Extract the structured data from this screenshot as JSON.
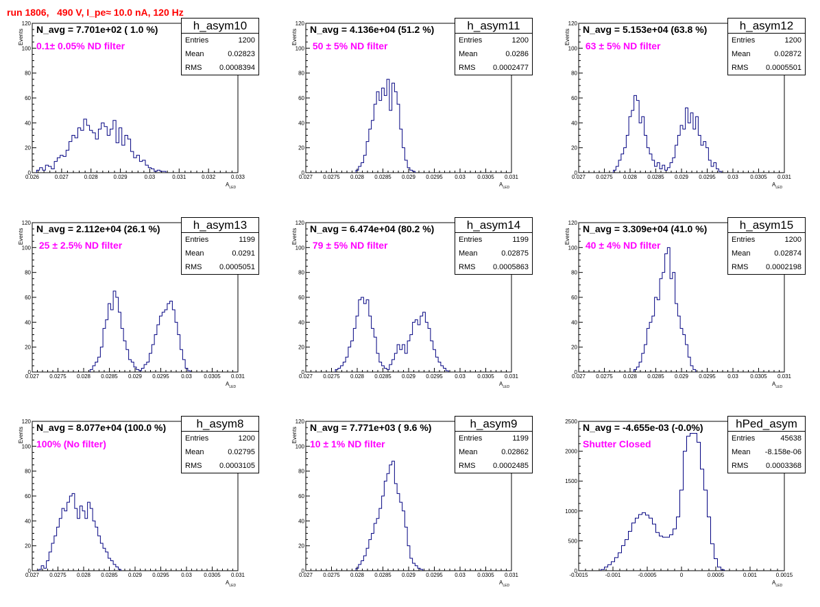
{
  "page": {
    "title": "run 1806,   490 V, I_pe≈ 10.0 nA, 120 Hz"
  },
  "chart_data": [
    {
      "type": "histogram",
      "name": "h_asym10",
      "navg": "N_avg = 7.701e+02 ( 1.0 %)",
      "label": "0.1± 0.05% ND filter",
      "entries": "1200",
      "mean": "0.02823",
      "rms": "0.0008394",
      "xlim": [
        0.026,
        0.033
      ],
      "ylim": [
        0,
        120
      ],
      "xticks": [
        "0.026",
        "0.027",
        "0.028",
        "0.029",
        "0.03",
        "0.031",
        "0.032",
        "0.033"
      ],
      "yticks": [
        "0",
        "20",
        "40",
        "60",
        "80",
        "100",
        "120"
      ],
      "xlabel": "A",
      "xlabel_sub": "LED",
      "ylabel": "Events",
      "bin_width": 0.0001,
      "x": [
        0.0262,
        0.0263,
        0.0264,
        0.0265,
        0.0266,
        0.0267,
        0.0268,
        0.0269,
        0.027,
        0.0271,
        0.0272,
        0.0273,
        0.0274,
        0.0275,
        0.0276,
        0.0277,
        0.0278,
        0.0279,
        0.028,
        0.0281,
        0.0282,
        0.0283,
        0.0284,
        0.0285,
        0.0286,
        0.0287,
        0.0288,
        0.0289,
        0.029,
        0.0291,
        0.0292,
        0.0293,
        0.0294,
        0.0295,
        0.0296,
        0.0297,
        0.0298,
        0.0299,
        0.03,
        0.0301,
        0.0302,
        0.0303,
        0.0304,
        0.0305
      ],
      "y": [
        2,
        4,
        2,
        6,
        5,
        3,
        9,
        12,
        14,
        13,
        18,
        25,
        30,
        28,
        36,
        34,
        43,
        38,
        34,
        32,
        27,
        35,
        40,
        37,
        30,
        35,
        42,
        24,
        36,
        22,
        30,
        27,
        17,
        12,
        14,
        9,
        10,
        6,
        4,
        3,
        1,
        2,
        1,
        1
      ]
    },
    {
      "type": "histogram",
      "name": "h_asym11",
      "navg": "N_avg = 4.136e+04 (51.2 %)",
      "label": " 50 ± 5% ND filter",
      "entries": "1200",
      "mean": "0.0286",
      "rms": "0.0002477",
      "xlim": [
        0.027,
        0.031
      ],
      "ylim": [
        0,
        120
      ],
      "xticks": [
        "0.027",
        "0.0275",
        "0.028",
        "0.0285",
        "0.029",
        "0.0295",
        "0.03",
        "0.0305",
        "0.031"
      ],
      "yticks": [
        "0",
        "20",
        "40",
        "60",
        "80",
        "100",
        "120"
      ],
      "xlabel": "A",
      "xlabel_sub": "LED",
      "ylabel": "Events",
      "bin_width": 5e-05,
      "x": [
        0.028,
        0.02805,
        0.0281,
        0.02815,
        0.0282,
        0.02825,
        0.0283,
        0.02835,
        0.0284,
        0.02845,
        0.0285,
        0.02855,
        0.0286,
        0.02865,
        0.0287,
        0.02875,
        0.0288,
        0.02885,
        0.0289,
        0.02895,
        0.029,
        0.02905,
        0.0291
      ],
      "y": [
        2,
        5,
        8,
        14,
        25,
        35,
        42,
        55,
        65,
        58,
        68,
        62,
        75,
        50,
        72,
        65,
        55,
        35,
        20,
        10,
        4,
        2,
        1
      ]
    },
    {
      "type": "histogram",
      "name": "h_asym12",
      "navg": "N_avg = 5.153e+04 (63.8 %)",
      "label": " 63 ± 5% ND filter",
      "entries": "1200",
      "mean": "0.02872",
      "rms": "0.0005501",
      "xlim": [
        0.027,
        0.031
      ],
      "ylim": [
        0,
        120
      ],
      "xticks": [
        "0.027",
        "0.0275",
        "0.028",
        "0.0285",
        "0.029",
        "0.0295",
        "0.03",
        "0.0305",
        "0.031"
      ],
      "yticks": [
        "0",
        "20",
        "40",
        "60",
        "80",
        "100",
        "120"
      ],
      "xlabel": "A",
      "xlabel_sub": "LED",
      "ylabel": "Events",
      "bin_width": 5e-05,
      "x": [
        0.0277,
        0.02775,
        0.0278,
        0.02785,
        0.0279,
        0.02795,
        0.028,
        0.02805,
        0.0281,
        0.02815,
        0.0282,
        0.02825,
        0.0283,
        0.02835,
        0.0284,
        0.02845,
        0.0285,
        0.02855,
        0.0286,
        0.02865,
        0.0287,
        0.02875,
        0.0288,
        0.02885,
        0.0289,
        0.02895,
        0.029,
        0.02905,
        0.0291,
        0.02915,
        0.0292,
        0.02925,
        0.0293,
        0.02935,
        0.0294,
        0.02945,
        0.0295,
        0.02955,
        0.0296,
        0.02965,
        0.0297,
        0.02975
      ],
      "y": [
        2,
        5,
        10,
        15,
        20,
        30,
        45,
        50,
        62,
        58,
        40,
        45,
        30,
        20,
        15,
        10,
        5,
        8,
        3,
        6,
        2,
        4,
        8,
        12,
        22,
        30,
        38,
        35,
        52,
        40,
        48,
        35,
        45,
        30,
        22,
        25,
        20,
        10,
        5,
        8,
        3,
        1
      ]
    },
    {
      "type": "histogram",
      "name": "h_asym13",
      "navg": "N_avg = 2.112e+04 (26.1 %)",
      "label": " 25 ± 2.5% ND filter",
      "entries": "1199",
      "mean": "0.0291",
      "rms": "0.0005051",
      "xlim": [
        0.027,
        0.031
      ],
      "ylim": [
        0,
        120
      ],
      "xticks": [
        "0.027",
        "0.0275",
        "0.028",
        "0.0285",
        "0.029",
        "0.0295",
        "0.03",
        "0.0305",
        "0.031"
      ],
      "yticks": [
        "0",
        "20",
        "40",
        "60",
        "80",
        "100",
        "120"
      ],
      "xlabel": "A",
      "xlabel_sub": "LED",
      "ylabel": "Events",
      "bin_width": 5e-05,
      "x": [
        0.02815,
        0.0282,
        0.02825,
        0.0283,
        0.02835,
        0.0284,
        0.02845,
        0.0285,
        0.02855,
        0.0286,
        0.02865,
        0.0287,
        0.02875,
        0.0288,
        0.02885,
        0.0289,
        0.02895,
        0.029,
        0.02905,
        0.0291,
        0.02915,
        0.0292,
        0.02925,
        0.0293,
        0.02935,
        0.0294,
        0.02945,
        0.0295,
        0.02955,
        0.0296,
        0.02965,
        0.0297,
        0.02975,
        0.0298,
        0.02985,
        0.0299,
        0.02995,
        0.03,
        0.03005
      ],
      "y": [
        2,
        5,
        8,
        12,
        20,
        35,
        42,
        55,
        50,
        65,
        60,
        48,
        35,
        25,
        18,
        10,
        8,
        4,
        2,
        1,
        3,
        6,
        8,
        15,
        22,
        30,
        38,
        45,
        48,
        50,
        55,
        57,
        50,
        40,
        30,
        18,
        10,
        3,
        1
      ]
    },
    {
      "type": "histogram",
      "name": "h_asym14",
      "navg": "N_avg = 6.474e+04 (80.2 %)",
      "label": " 79 ± 5% ND filter",
      "entries": "1199",
      "mean": "0.02875",
      "rms": "0.0005863",
      "xlim": [
        0.027,
        0.031
      ],
      "ylim": [
        0,
        120
      ],
      "xticks": [
        "0.027",
        "0.0275",
        "0.028",
        "0.0285",
        "0.029",
        "0.0295",
        "0.03",
        "0.0305",
        "0.031"
      ],
      "yticks": [
        "0",
        "20",
        "40",
        "60",
        "80",
        "100",
        "120"
      ],
      "xlabel": "A",
      "xlabel_sub": "LED",
      "ylabel": "Events",
      "bin_width": 5e-05,
      "x": [
        0.0276,
        0.02765,
        0.0277,
        0.02775,
        0.0278,
        0.02785,
        0.0279,
        0.02795,
        0.028,
        0.02805,
        0.0281,
        0.02815,
        0.0282,
        0.02825,
        0.0283,
        0.02835,
        0.0284,
        0.02845,
        0.0285,
        0.02855,
        0.0286,
        0.02865,
        0.0287,
        0.02875,
        0.0288,
        0.02885,
        0.0289,
        0.02895,
        0.029,
        0.02905,
        0.0291,
        0.02915,
        0.0292,
        0.02925,
        0.0293,
        0.02935,
        0.0294,
        0.02945,
        0.0295,
        0.02955,
        0.0296,
        0.02965,
        0.0297,
        0.02975
      ],
      "y": [
        2,
        3,
        5,
        8,
        12,
        20,
        25,
        35,
        45,
        58,
        60,
        55,
        58,
        45,
        35,
        28,
        15,
        8,
        5,
        3,
        2,
        6,
        10,
        15,
        22,
        18,
        22,
        15,
        25,
        30,
        40,
        42,
        38,
        45,
        48,
        40,
        35,
        25,
        18,
        12,
        8,
        5,
        3,
        1
      ]
    },
    {
      "type": "histogram",
      "name": "h_asym15",
      "navg": "N_avg = 3.309e+04 (41.0 %)",
      "label": " 40 ± 4% ND filter",
      "entries": "1200",
      "mean": "0.02874",
      "rms": "0.0002198",
      "xlim": [
        0.027,
        0.031
      ],
      "ylim": [
        0,
        120
      ],
      "xticks": [
        "0.027",
        "0.0275",
        "0.028",
        "0.0285",
        "0.029",
        "0.0295",
        "0.03",
        "0.0305",
        "0.031"
      ],
      "yticks": [
        "0",
        "20",
        "40",
        "60",
        "80",
        "100",
        "120"
      ],
      "xlabel": "A",
      "xlabel_sub": "LED",
      "ylabel": "Events",
      "bin_width": 5e-05,
      "x": [
        0.0281,
        0.02815,
        0.0282,
        0.02825,
        0.0283,
        0.02835,
        0.0284,
        0.02845,
        0.0285,
        0.02855,
        0.0286,
        0.02865,
        0.0287,
        0.02875,
        0.0288,
        0.02885,
        0.0289,
        0.02895,
        0.029,
        0.02905,
        0.0291,
        0.02915,
        0.0292,
        0.02925
      ],
      "y": [
        2,
        4,
        8,
        15,
        22,
        35,
        40,
        45,
        60,
        58,
        75,
        80,
        95,
        100,
        75,
        80,
        55,
        45,
        35,
        30,
        22,
        12,
        5,
        2
      ]
    },
    {
      "type": "histogram",
      "name": "h_asym8",
      "navg": "N_avg = 8.077e+04 (100.0 %)",
      "label": "100% (No filter)",
      "entries": "1200",
      "mean": "0.02795",
      "rms": "0.0003105",
      "xlim": [
        0.027,
        0.031
      ],
      "ylim": [
        0,
        120
      ],
      "xticks": [
        "0.027",
        "0.0275",
        "0.028",
        "0.0285",
        "0.029",
        "0.0295",
        "0.03",
        "0.0305",
        "0.031"
      ],
      "yticks": [
        "0",
        "20",
        "40",
        "60",
        "80",
        "100",
        "120"
      ],
      "xlabel": "A",
      "xlabel_sub": "LED",
      "ylabel": "Events",
      "bin_width": 5e-05,
      "x": [
        0.02715,
        0.0272,
        0.02725,
        0.0273,
        0.02735,
        0.0274,
        0.02745,
        0.0275,
        0.02755,
        0.0276,
        0.02765,
        0.0277,
        0.02775,
        0.0278,
        0.02785,
        0.0279,
        0.02795,
        0.028,
        0.02805,
        0.0281,
        0.02815,
        0.0282,
        0.02825,
        0.0283,
        0.02835,
        0.0284,
        0.02845,
        0.0285,
        0.02855,
        0.0286,
        0.02865,
        0.0287
      ],
      "y": [
        1,
        4,
        2,
        8,
        15,
        22,
        28,
        35,
        42,
        50,
        48,
        55,
        60,
        62,
        50,
        42,
        52,
        48,
        42,
        55,
        50,
        40,
        35,
        28,
        22,
        18,
        15,
        10,
        8,
        5,
        3,
        1
      ]
    },
    {
      "type": "histogram",
      "name": "h_asym9",
      "navg": "N_avg = 7.771e+03 ( 9.6 %)",
      "label": "10 ± 1% ND filter",
      "entries": "1199",
      "mean": "0.02862",
      "rms": "0.0002485",
      "xlim": [
        0.027,
        0.031
      ],
      "ylim": [
        0,
        120
      ],
      "xticks": [
        "0.027",
        "0.0275",
        "0.028",
        "0.0285",
        "0.029",
        "0.0295",
        "0.03",
        "0.0305",
        "0.031"
      ],
      "yticks": [
        "0",
        "20",
        "40",
        "60",
        "80",
        "100",
        "120"
      ],
      "xlabel": "A",
      "xlabel_sub": "LED",
      "ylabel": "Events",
      "bin_width": 5e-05,
      "x": [
        0.028,
        0.02805,
        0.0281,
        0.02815,
        0.0282,
        0.02825,
        0.0283,
        0.02835,
        0.0284,
        0.02845,
        0.0285,
        0.02855,
        0.0286,
        0.02865,
        0.0287,
        0.02875,
        0.0288,
        0.02885,
        0.0289,
        0.02895,
        0.029,
        0.02905,
        0.0291,
        0.02915,
        0.0292,
        0.02925
      ],
      "y": [
        2,
        5,
        8,
        12,
        18,
        25,
        30,
        38,
        42,
        50,
        60,
        72,
        78,
        85,
        88,
        70,
        62,
        55,
        48,
        35,
        20,
        10,
        6,
        4,
        2,
        1
      ]
    },
    {
      "type": "histogram",
      "name": "hPed_asym",
      "navg": "N_avg = -4.655e-03 (-0.0%)",
      "label": "Shutter Closed",
      "entries": "45638",
      "mean": "-8.158e-06",
      "rms": "0.0003368",
      "xlim": [
        -0.0015,
        0.0015
      ],
      "ylim": [
        0,
        2500
      ],
      "xticks": [
        "-0.0015",
        "-0.001",
        "-0.0005",
        "0",
        "0.0005",
        "0.001",
        "0.0015"
      ],
      "yticks": [
        "0",
        "500",
        "1000",
        "1500",
        "2000",
        "2500"
      ],
      "xlabel": "A",
      "xlabel_sub": "LED",
      "ylabel": "",
      "bin_width": 5e-05,
      "x": [
        -0.00115,
        -0.0011,
        -0.00105,
        -0.001,
        -0.00095,
        -0.0009,
        -0.00085,
        -0.0008,
        -0.00075,
        -0.0007,
        -0.00065,
        -0.0006,
        -0.00055,
        -0.0005,
        -0.00045,
        -0.0004,
        -0.00035,
        -0.0003,
        -0.00025,
        -0.0002,
        -0.00015,
        -0.0001,
        -5e-05,
        0.0,
        5e-05,
        0.0001,
        0.00015,
        0.0002,
        0.00025,
        0.0003,
        0.00035,
        0.0004,
        0.00045,
        0.0005,
        0.00055,
        0.0006
      ],
      "y": [
        20,
        60,
        100,
        150,
        220,
        300,
        420,
        520,
        660,
        800,
        880,
        940,
        970,
        930,
        880,
        780,
        640,
        580,
        560,
        560,
        600,
        700,
        900,
        1350,
        2000,
        2250,
        2300,
        2300,
        2150,
        1700,
        1350,
        900,
        450,
        200,
        60,
        15
      ]
    }
  ]
}
